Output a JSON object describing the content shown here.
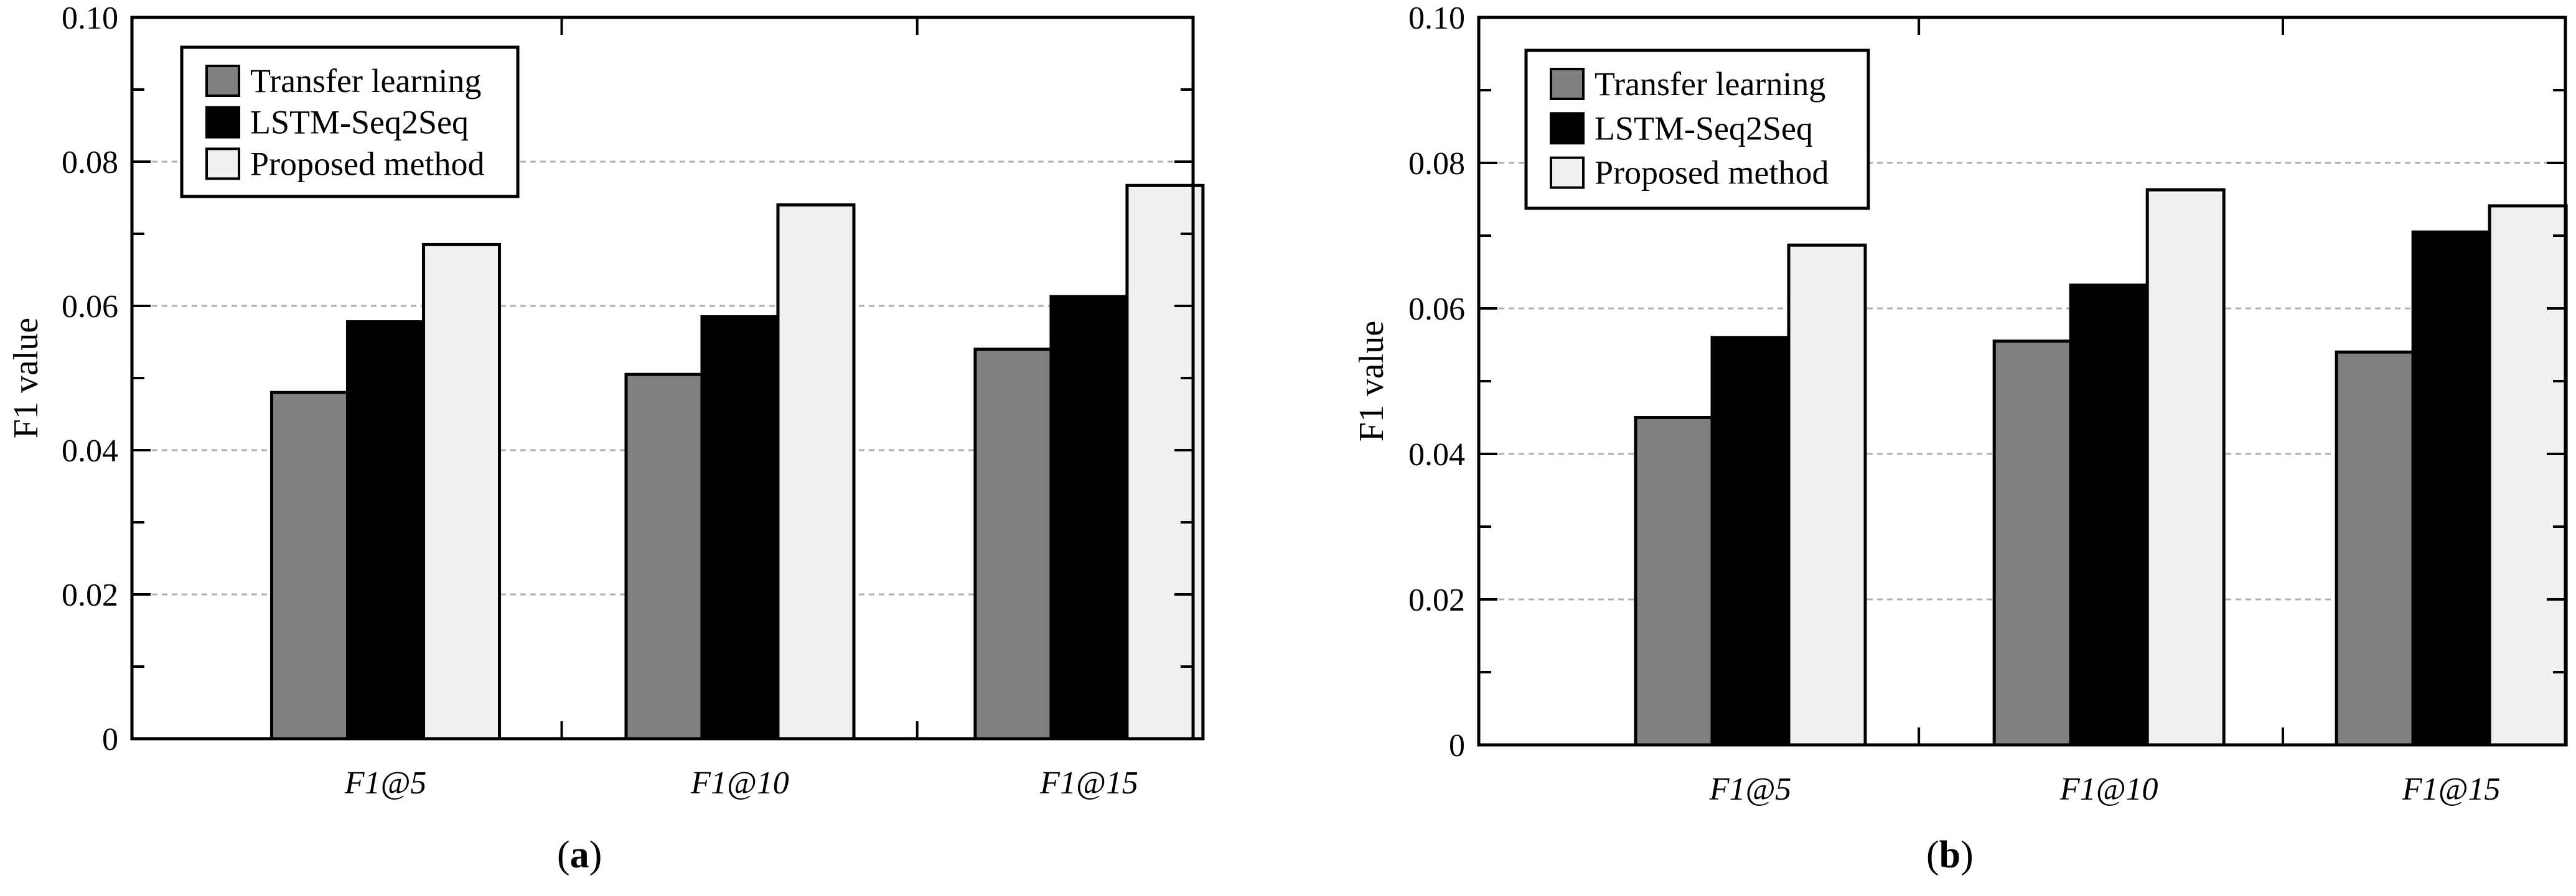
{
  "figure": {
    "panel_a_letter": "a",
    "panel_b_letter": "b"
  },
  "colors": {
    "transfer_learning": "#808080",
    "lstm_seq2seq": "#000000",
    "proposed_method": "#f0f0f0",
    "grid": "#b0b0b0"
  },
  "chart_data": [
    {
      "type": "bar",
      "panel": "a",
      "title": "",
      "xlabel": "",
      "ylabel": "F1 value",
      "ylim": [
        0,
        0.1
      ],
      "yticks": [
        "0",
        "0.02",
        "0.04",
        "0.06",
        "0.08",
        "0.10"
      ],
      "grid": true,
      "legend_position": "top-left",
      "categories": [
        "F1@5",
        "F1@10",
        "F1@15"
      ],
      "series": [
        {
          "name": "Transfer learning",
          "values": [
            0.048,
            0.0505,
            0.054
          ]
        },
        {
          "name": "LSTM-Seq2Seq",
          "values": [
            0.0578,
            0.0585,
            0.0613
          ]
        },
        {
          "name": "Proposed method",
          "values": [
            0.0685,
            0.074,
            0.0767
          ]
        }
      ]
    },
    {
      "type": "bar",
      "panel": "b",
      "title": "",
      "xlabel": "",
      "ylabel": "F1 value",
      "ylim": [
        0,
        0.1
      ],
      "yticks": [
        "0",
        "0.02",
        "0.04",
        "0.06",
        "0.08",
        "0.10"
      ],
      "grid": true,
      "legend_position": "top-left",
      "categories": [
        "F1@5",
        "F1@10",
        "F1@15"
      ],
      "series": [
        {
          "name": "Transfer learning",
          "values": [
            0.045,
            0.0555,
            0.054
          ]
        },
        {
          "name": "LSTM-Seq2Seq",
          "values": [
            0.056,
            0.0632,
            0.0705
          ]
        },
        {
          "name": "Proposed method",
          "values": [
            0.0687,
            0.0763,
            0.0741
          ]
        }
      ]
    }
  ]
}
